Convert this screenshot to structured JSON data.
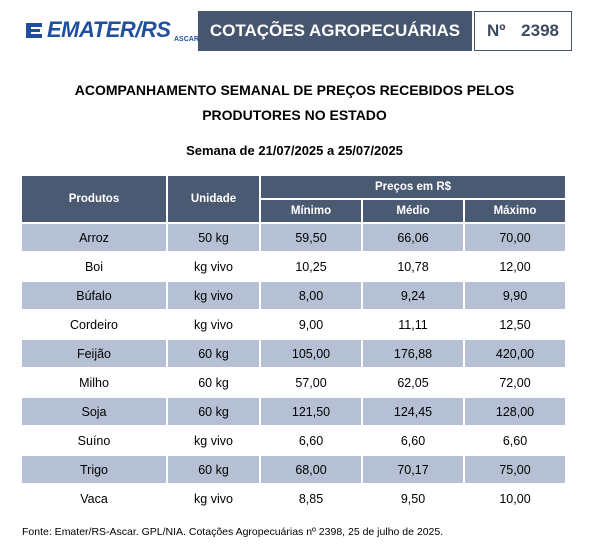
{
  "header": {
    "logo": "EMATER/RS",
    "logo_sub": "ASCAR",
    "title": "COTAÇÕES AGROPECUÁRIAS",
    "number_label": "Nº",
    "number": "2398"
  },
  "heading": [
    "ACOMPANHAMENTO SEMANAL DE PREÇOS RECEBIDOS PELOS",
    "PRODUTORES NO ESTADO"
  ],
  "week": "Semana de 21/07/2025 a 25/07/2025",
  "table": {
    "columns": {
      "product": "Produtos",
      "unit": "Unidade",
      "prices": "Preços em R$",
      "min": "Mínimo",
      "mid": "Médio",
      "max": "Máximo"
    },
    "rows": [
      [
        "Arroz",
        "50 kg",
        "59,50",
        "66,06",
        "70,00"
      ],
      [
        "Boi",
        "kg vivo",
        "10,25",
        "10,78",
        "12,00"
      ],
      [
        "Búfalo",
        "kg vivo",
        "8,00",
        "9,24",
        "9,90"
      ],
      [
        "Cordeiro",
        "kg vivo",
        "9,00",
        "11,11",
        "12,50"
      ],
      [
        "Feijão",
        "60 kg",
        "105,00",
        "176,88",
        "420,00"
      ],
      [
        "Milho",
        "60 kg",
        "57,00",
        "62,05",
        "72,00"
      ],
      [
        "Soja",
        "60 kg",
        "121,50",
        "124,45",
        "128,00"
      ],
      [
        "Suíno",
        "kg vivo",
        "6,60",
        "6,60",
        "6,60"
      ],
      [
        "Trigo",
        "60 kg",
        "68,00",
        "70,17",
        "75,00"
      ],
      [
        "Vaca",
        "kg vivo",
        "8,85",
        "9,50",
        "10,00"
      ]
    ]
  },
  "footer": "Fonte: Emater/RS-Ascar. GPL/NIA. Cotações Agropecuárias nº 2398, 25 de julho de 2025."
}
